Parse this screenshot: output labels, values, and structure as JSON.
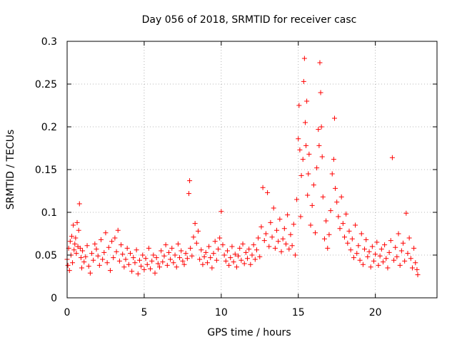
{
  "chart_data": {
    "type": "scatter",
    "title": "Day 056 of 2018, SRMTID for receiver casc",
    "xlabel": "GPS time / hours",
    "ylabel": "SRMTID / TECUs",
    "xlim": [
      0,
      24
    ],
    "ylim": [
      0,
      0.3
    ],
    "x_ticks": [
      0,
      5,
      10,
      15,
      20
    ],
    "x_tick_labels": [
      "0",
      "5",
      "10",
      "15",
      "20"
    ],
    "y_ticks": [
      0,
      0.05,
      0.1,
      0.15,
      0.2,
      0.25,
      0.3
    ],
    "y_tick_labels": [
      "0",
      "0.05",
      "0.1",
      "0.15",
      "0.2",
      "0.25",
      "0.3"
    ],
    "grid": true,
    "marker": "plus",
    "series": [
      {
        "name": "SRMTID",
        "color": "#ff0000",
        "points": [
          [
            0.0,
            0.045
          ],
          [
            0.05,
            0.038
          ],
          [
            0.1,
            0.058
          ],
          [
            0.15,
            0.032
          ],
          [
            0.2,
            0.066
          ],
          [
            0.25,
            0.05
          ],
          [
            0.3,
            0.072
          ],
          [
            0.35,
            0.041
          ],
          [
            0.4,
            0.085
          ],
          [
            0.45,
            0.056
          ],
          [
            0.5,
            0.063
          ],
          [
            0.55,
            0.07
          ],
          [
            0.6,
            0.052
          ],
          [
            0.65,
            0.088
          ],
          [
            0.7,
            0.06
          ],
          [
            0.75,
            0.079
          ],
          [
            0.8,
            0.11
          ],
          [
            0.85,
            0.058
          ],
          [
            0.9,
            0.047
          ],
          [
            0.95,
            0.035
          ],
          [
            1.0,
            0.055
          ],
          [
            1.1,
            0.042
          ],
          [
            1.2,
            0.048
          ],
          [
            1.3,
            0.061
          ],
          [
            1.4,
            0.037
          ],
          [
            1.5,
            0.029
          ],
          [
            1.6,
            0.052
          ],
          [
            1.7,
            0.044
          ],
          [
            1.8,
            0.063
          ],
          [
            1.9,
            0.057
          ],
          [
            2.0,
            0.049
          ],
          [
            2.1,
            0.038
          ],
          [
            2.2,
            0.068
          ],
          [
            2.3,
            0.045
          ],
          [
            2.4,
            0.053
          ],
          [
            2.5,
            0.076
          ],
          [
            2.6,
            0.041
          ],
          [
            2.7,
            0.059
          ],
          [
            2.8,
            0.032
          ],
          [
            2.9,
            0.066
          ],
          [
            3.0,
            0.047
          ],
          [
            3.1,
            0.07
          ],
          [
            3.2,
            0.054
          ],
          [
            3.3,
            0.079
          ],
          [
            3.4,
            0.043
          ],
          [
            3.5,
            0.062
          ],
          [
            3.6,
            0.051
          ],
          [
            3.7,
            0.036
          ],
          [
            3.8,
            0.045
          ],
          [
            3.9,
            0.058
          ],
          [
            4.0,
            0.039
          ],
          [
            4.1,
            0.052
          ],
          [
            4.2,
            0.031
          ],
          [
            4.3,
            0.047
          ],
          [
            4.4,
            0.041
          ],
          [
            4.5,
            0.056
          ],
          [
            4.6,
            0.028
          ],
          [
            4.7,
            0.044
          ],
          [
            4.8,
            0.037
          ],
          [
            4.9,
            0.05
          ],
          [
            5.0,
            0.033
          ],
          [
            5.1,
            0.046
          ],
          [
            5.2,
            0.039
          ],
          [
            5.3,
            0.058
          ],
          [
            5.4,
            0.034
          ],
          [
            5.5,
            0.043
          ],
          [
            5.6,
            0.05
          ],
          [
            5.7,
            0.029
          ],
          [
            5.8,
            0.047
          ],
          [
            5.9,
            0.04
          ],
          [
            6.0,
            0.036
          ],
          [
            6.1,
            0.055
          ],
          [
            6.2,
            0.042
          ],
          [
            6.3,
            0.049
          ],
          [
            6.4,
            0.062
          ],
          [
            6.5,
            0.038
          ],
          [
            6.6,
            0.053
          ],
          [
            6.7,
            0.045
          ],
          [
            6.8,
            0.058
          ],
          [
            6.9,
            0.041
          ],
          [
            7.0,
            0.05
          ],
          [
            7.1,
            0.036
          ],
          [
            7.2,
            0.063
          ],
          [
            7.3,
            0.047
          ],
          [
            7.4,
            0.055
          ],
          [
            7.5,
            0.043
          ],
          [
            7.6,
            0.039
          ],
          [
            7.7,
            0.052
          ],
          [
            7.8,
            0.046
          ],
          [
            7.9,
            0.122
          ],
          [
            7.95,
            0.137
          ],
          [
            8.0,
            0.058
          ],
          [
            8.1,
            0.049
          ],
          [
            8.2,
            0.071
          ],
          [
            8.3,
            0.087
          ],
          [
            8.4,
            0.064
          ],
          [
            8.5,
            0.078
          ],
          [
            8.6,
            0.045
          ],
          [
            8.7,
            0.056
          ],
          [
            8.8,
            0.039
          ],
          [
            8.9,
            0.048
          ],
          [
            9.0,
            0.053
          ],
          [
            9.1,
            0.041
          ],
          [
            9.2,
            0.06
          ],
          [
            9.3,
            0.047
          ],
          [
            9.4,
            0.035
          ],
          [
            9.5,
            0.052
          ],
          [
            9.6,
            0.066
          ],
          [
            9.7,
            0.044
          ],
          [
            9.8,
            0.057
          ],
          [
            9.9,
            0.07
          ],
          [
            10.0,
            0.101
          ],
          [
            10.1,
            0.062
          ],
          [
            10.2,
            0.05
          ],
          [
            10.3,
            0.043
          ],
          [
            10.4,
            0.055
          ],
          [
            10.5,
            0.038
          ],
          [
            10.6,
            0.047
          ],
          [
            10.7,
            0.06
          ],
          [
            10.8,
            0.042
          ],
          [
            10.9,
            0.051
          ],
          [
            11.0,
            0.036
          ],
          [
            11.1,
            0.049
          ],
          [
            11.2,
            0.058
          ],
          [
            11.3,
            0.044
          ],
          [
            11.4,
            0.063
          ],
          [
            11.5,
            0.04
          ],
          [
            11.6,
            0.053
          ],
          [
            11.7,
            0.046
          ],
          [
            11.8,
            0.057
          ],
          [
            11.9,
            0.039
          ],
          [
            12.0,
            0.05
          ],
          [
            12.1,
            0.062
          ],
          [
            12.2,
            0.045
          ],
          [
            12.3,
            0.056
          ],
          [
            12.4,
            0.07
          ],
          [
            12.5,
            0.048
          ],
          [
            12.6,
            0.083
          ],
          [
            12.7,
            0.129
          ],
          [
            12.8,
            0.067
          ],
          [
            12.9,
            0.075
          ],
          [
            13.0,
            0.123
          ],
          [
            13.1,
            0.06
          ],
          [
            13.2,
            0.088
          ],
          [
            13.3,
            0.071
          ],
          [
            13.4,
            0.105
          ],
          [
            13.5,
            0.058
          ],
          [
            13.6,
            0.079
          ],
          [
            13.7,
            0.066
          ],
          [
            13.8,
            0.092
          ],
          [
            13.9,
            0.054
          ],
          [
            14.0,
            0.069
          ],
          [
            14.1,
            0.081
          ],
          [
            14.2,
            0.063
          ],
          [
            14.3,
            0.097
          ],
          [
            14.4,
            0.057
          ],
          [
            14.5,
            0.074
          ],
          [
            14.6,
            0.061
          ],
          [
            14.7,
            0.086
          ],
          [
            14.8,
            0.05
          ],
          [
            14.9,
            0.115
          ],
          [
            15.0,
            0.186
          ],
          [
            15.05,
            0.225
          ],
          [
            15.1,
            0.173
          ],
          [
            15.15,
            0.095
          ],
          [
            15.2,
            0.143
          ],
          [
            15.3,
            0.162
          ],
          [
            15.35,
            0.253
          ],
          [
            15.4,
            0.28
          ],
          [
            15.45,
            0.205
          ],
          [
            15.5,
            0.178
          ],
          [
            15.55,
            0.23
          ],
          [
            15.6,
            0.12
          ],
          [
            15.65,
            0.145
          ],
          [
            15.7,
            0.168
          ],
          [
            15.8,
            0.085
          ],
          [
            15.9,
            0.108
          ],
          [
            16.0,
            0.132
          ],
          [
            16.1,
            0.076
          ],
          [
            16.2,
            0.152
          ],
          [
            16.3,
            0.197
          ],
          [
            16.35,
            0.178
          ],
          [
            16.4,
            0.275
          ],
          [
            16.45,
            0.24
          ],
          [
            16.5,
            0.2
          ],
          [
            16.55,
            0.165
          ],
          [
            16.6,
            0.118
          ],
          [
            16.7,
            0.069
          ],
          [
            16.8,
            0.09
          ],
          [
            16.9,
            0.058
          ],
          [
            17.0,
            0.074
          ],
          [
            17.1,
            0.102
          ],
          [
            17.2,
            0.145
          ],
          [
            17.3,
            0.162
          ],
          [
            17.35,
            0.21
          ],
          [
            17.4,
            0.128
          ],
          [
            17.5,
            0.112
          ],
          [
            17.6,
            0.095
          ],
          [
            17.7,
            0.081
          ],
          [
            17.8,
            0.118
          ],
          [
            17.9,
            0.087
          ],
          [
            18.0,
            0.071
          ],
          [
            18.1,
            0.098
          ],
          [
            18.2,
            0.064
          ],
          [
            18.3,
            0.078
          ],
          [
            18.4,
            0.056
          ],
          [
            18.5,
            0.069
          ],
          [
            18.6,
            0.047
          ],
          [
            18.7,
            0.085
          ],
          [
            18.8,
            0.052
          ],
          [
            18.9,
            0.061
          ],
          [
            19.0,
            0.044
          ],
          [
            19.1,
            0.075
          ],
          [
            19.2,
            0.039
          ],
          [
            19.3,
            0.057
          ],
          [
            19.4,
            0.068
          ],
          [
            19.5,
            0.048
          ],
          [
            19.6,
            0.054
          ],
          [
            19.7,
            0.036
          ],
          [
            19.8,
            0.06
          ],
          [
            19.9,
            0.043
          ],
          [
            20.0,
            0.051
          ],
          [
            20.1,
            0.065
          ],
          [
            20.2,
            0.038
          ],
          [
            20.3,
            0.049
          ],
          [
            20.4,
            0.057
          ],
          [
            20.5,
            0.042
          ],
          [
            20.6,
            0.062
          ],
          [
            20.7,
            0.046
          ],
          [
            20.8,
            0.035
          ],
          [
            20.9,
            0.053
          ],
          [
            21.0,
            0.067
          ],
          [
            21.1,
            0.164
          ],
          [
            21.2,
            0.044
          ],
          [
            21.3,
            0.059
          ],
          [
            21.4,
            0.048
          ],
          [
            21.5,
            0.075
          ],
          [
            21.6,
            0.038
          ],
          [
            21.7,
            0.055
          ],
          [
            21.8,
            0.064
          ],
          [
            21.9,
            0.043
          ],
          [
            22.0,
            0.099
          ],
          [
            22.1,
            0.052
          ],
          [
            22.2,
            0.07
          ],
          [
            22.3,
            0.046
          ],
          [
            22.4,
            0.035
          ],
          [
            22.5,
            0.058
          ],
          [
            22.6,
            0.041
          ],
          [
            22.7,
            0.033
          ],
          [
            22.75,
            0.027
          ]
        ]
      }
    ]
  }
}
